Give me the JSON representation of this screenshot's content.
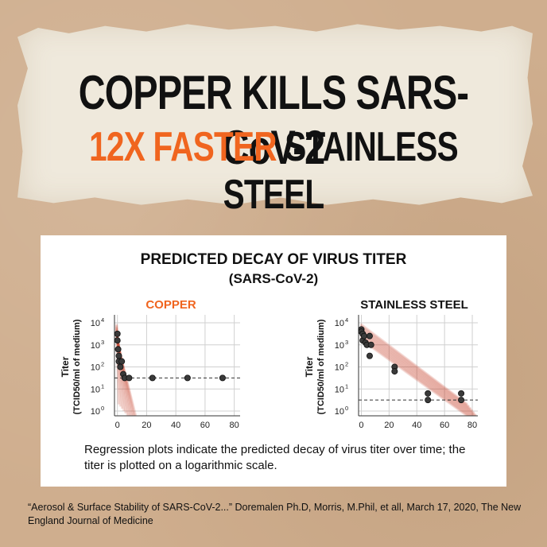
{
  "headline": {
    "line1": "COPPER KILLS SARS-CoV-2",
    "line2_accent": "12X FASTER",
    "line2_rest": "STAINLESS STEEL"
  },
  "card": {
    "title": "PREDICTED DECAY OF VIRUS TITER",
    "subtitle": "(SARS-CoV-2)",
    "caption": "Regression plots indicate the predicted decay of virus titer over time; the titer is plotted on a logarithmic scale."
  },
  "citation": "“Aerosol & Surface Stability of SARS-CoV-2...” Doremalen Ph.D, Morris, M.Phil, et all, March 17, 2020, The New England Journal of Medicine",
  "colors": {
    "accent": "#f0651f",
    "band": "#c8442a",
    "point": "#3a3a3a"
  },
  "chart_data": [
    {
      "type": "scatter",
      "title": "COPPER",
      "title_color": "#f0651f",
      "ylabel": "Titer",
      "ylabel_sub": "(TCID50/ml of medium)",
      "yscale": "log",
      "ylim": [
        1,
        10000
      ],
      "xlim": [
        -2,
        84
      ],
      "xticks": [
        0,
        20,
        40,
        60,
        80
      ],
      "yticks": [
        1,
        10,
        100,
        1000,
        10000
      ],
      "ytick_labels": [
        "10^0",
        "10^1",
        "10^2",
        "10^3",
        "10^4"
      ],
      "detection_limit": 31.6,
      "regression": {
        "x0": 0,
        "y0": 3981,
        "x1": 8,
        "y1": 0.5
      },
      "points": [
        {
          "x": 0,
          "y": 3162
        },
        {
          "x": 0,
          "y": 1585
        },
        {
          "x": 0.5,
          "y": 631
        },
        {
          "x": 1,
          "y": 316
        },
        {
          "x": 1,
          "y": 178
        },
        {
          "x": 2,
          "y": 100
        },
        {
          "x": 3,
          "y": 178
        },
        {
          "x": 4,
          "y": 47
        },
        {
          "x": 5,
          "y": 31.6
        },
        {
          "x": 8,
          "y": 31.6
        },
        {
          "x": 24,
          "y": 31.6
        },
        {
          "x": 48,
          "y": 31.6
        },
        {
          "x": 72,
          "y": 31.6
        }
      ]
    },
    {
      "type": "scatter",
      "title": "STAINLESS STEEL",
      "title_color": "#111111",
      "ylabel": "Titer",
      "ylabel_sub": "(TCID50/ml of medium)",
      "yscale": "log",
      "ylim": [
        1,
        10000
      ],
      "xlim": [
        -2,
        84
      ],
      "xticks": [
        0,
        20,
        40,
        60,
        80
      ],
      "yticks": [
        1,
        10,
        100,
        1000,
        10000
      ],
      "ytick_labels": [
        "10^0",
        "10^1",
        "10^2",
        "10^3",
        "10^4"
      ],
      "detection_limit": 3.16,
      "regression": {
        "x0": 0,
        "y0": 3981,
        "x1": 84,
        "y1": 0.5
      },
      "points": [
        {
          "x": 0,
          "y": 5012
        },
        {
          "x": 0,
          "y": 3981
        },
        {
          "x": 1,
          "y": 3162
        },
        {
          "x": 1,
          "y": 1585
        },
        {
          "x": 2,
          "y": 2512
        },
        {
          "x": 3,
          "y": 1259
        },
        {
          "x": 4,
          "y": 1000
        },
        {
          "x": 6,
          "y": 2512
        },
        {
          "x": 6,
          "y": 316
        },
        {
          "x": 7,
          "y": 1000
        },
        {
          "x": 24,
          "y": 100
        },
        {
          "x": 24,
          "y": 63
        },
        {
          "x": 48,
          "y": 6.3
        },
        {
          "x": 48,
          "y": 3.16
        },
        {
          "x": 72,
          "y": 6.3
        },
        {
          "x": 72,
          "y": 3.16
        }
      ]
    }
  ]
}
